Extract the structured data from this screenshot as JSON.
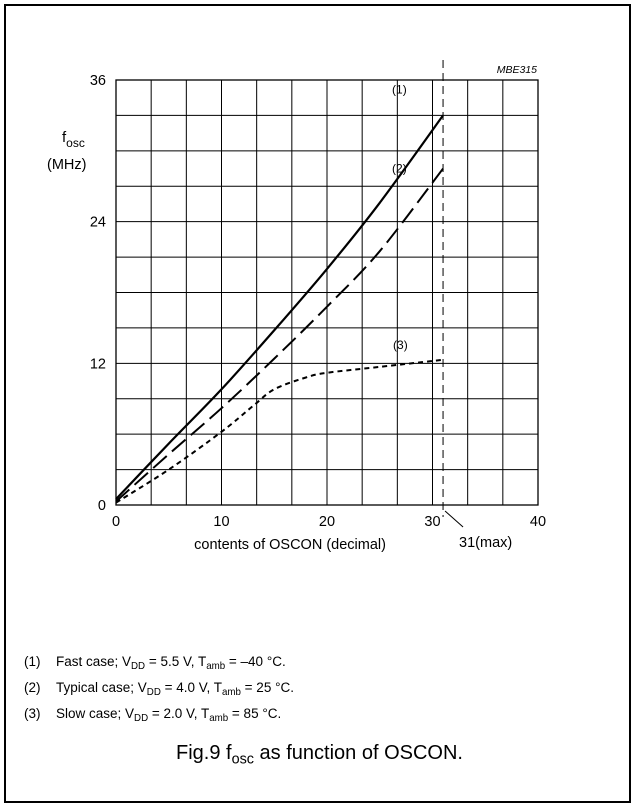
{
  "chart_data": {
    "type": "line",
    "figure_code": "MBE315",
    "ylabel": {
      "symbol": "f",
      "sub": "osc",
      "unit": "(MHz)"
    },
    "xlabel": "contents of OSCON (decimal)",
    "xlim": [
      0,
      40
    ],
    "ylim": [
      0,
      36
    ],
    "x_ticks": [
      0,
      10,
      20,
      30,
      40
    ],
    "y_ticks": [
      0,
      12,
      24,
      36
    ],
    "max_marker": {
      "x": 31,
      "label": "31(max)"
    },
    "grid": true,
    "series": [
      {
        "name": "(1)",
        "style": "solid",
        "x": [
          0,
          5,
          10,
          15,
          20,
          25,
          31
        ],
        "y": [
          0.5,
          5.2,
          9.8,
          14.8,
          20.0,
          25.6,
          33.0
        ]
      },
      {
        "name": "(2)",
        "style": "dashed",
        "x": [
          0,
          5,
          10,
          15,
          20,
          25,
          31
        ],
        "y": [
          0.3,
          4.3,
          8.2,
          12.4,
          16.8,
          21.5,
          28.5
        ]
      },
      {
        "name": "(3)",
        "style": "dotted",
        "x": [
          0,
          5,
          10,
          13,
          15,
          18,
          20,
          25,
          31
        ],
        "y": [
          0.2,
          3.0,
          6.2,
          8.4,
          9.8,
          10.8,
          11.2,
          11.7,
          12.3
        ]
      }
    ]
  },
  "notes": [
    {
      "num": "(1)",
      "text_a": "Fast case; V",
      "sub_a": "DD",
      "text_b": " = 5.5 V, T",
      "sub_b": "amb",
      "text_c": " = –40 °C."
    },
    {
      "num": "(2)",
      "text_a": "Typical case; V",
      "sub_a": "DD",
      "text_b": " = 4.0 V, T",
      "sub_b": "amb",
      "text_c": " = 25 °C."
    },
    {
      "num": "(3)",
      "text_a": "Slow case; V",
      "sub_a": "DD",
      "text_b": " = 2.0 V, T",
      "sub_b": "amb",
      "text_c": " = 85 °C."
    }
  ],
  "caption": {
    "text_a": "Fig.9  f",
    "sub": "osc",
    "text_b": " as function of OSCON."
  }
}
